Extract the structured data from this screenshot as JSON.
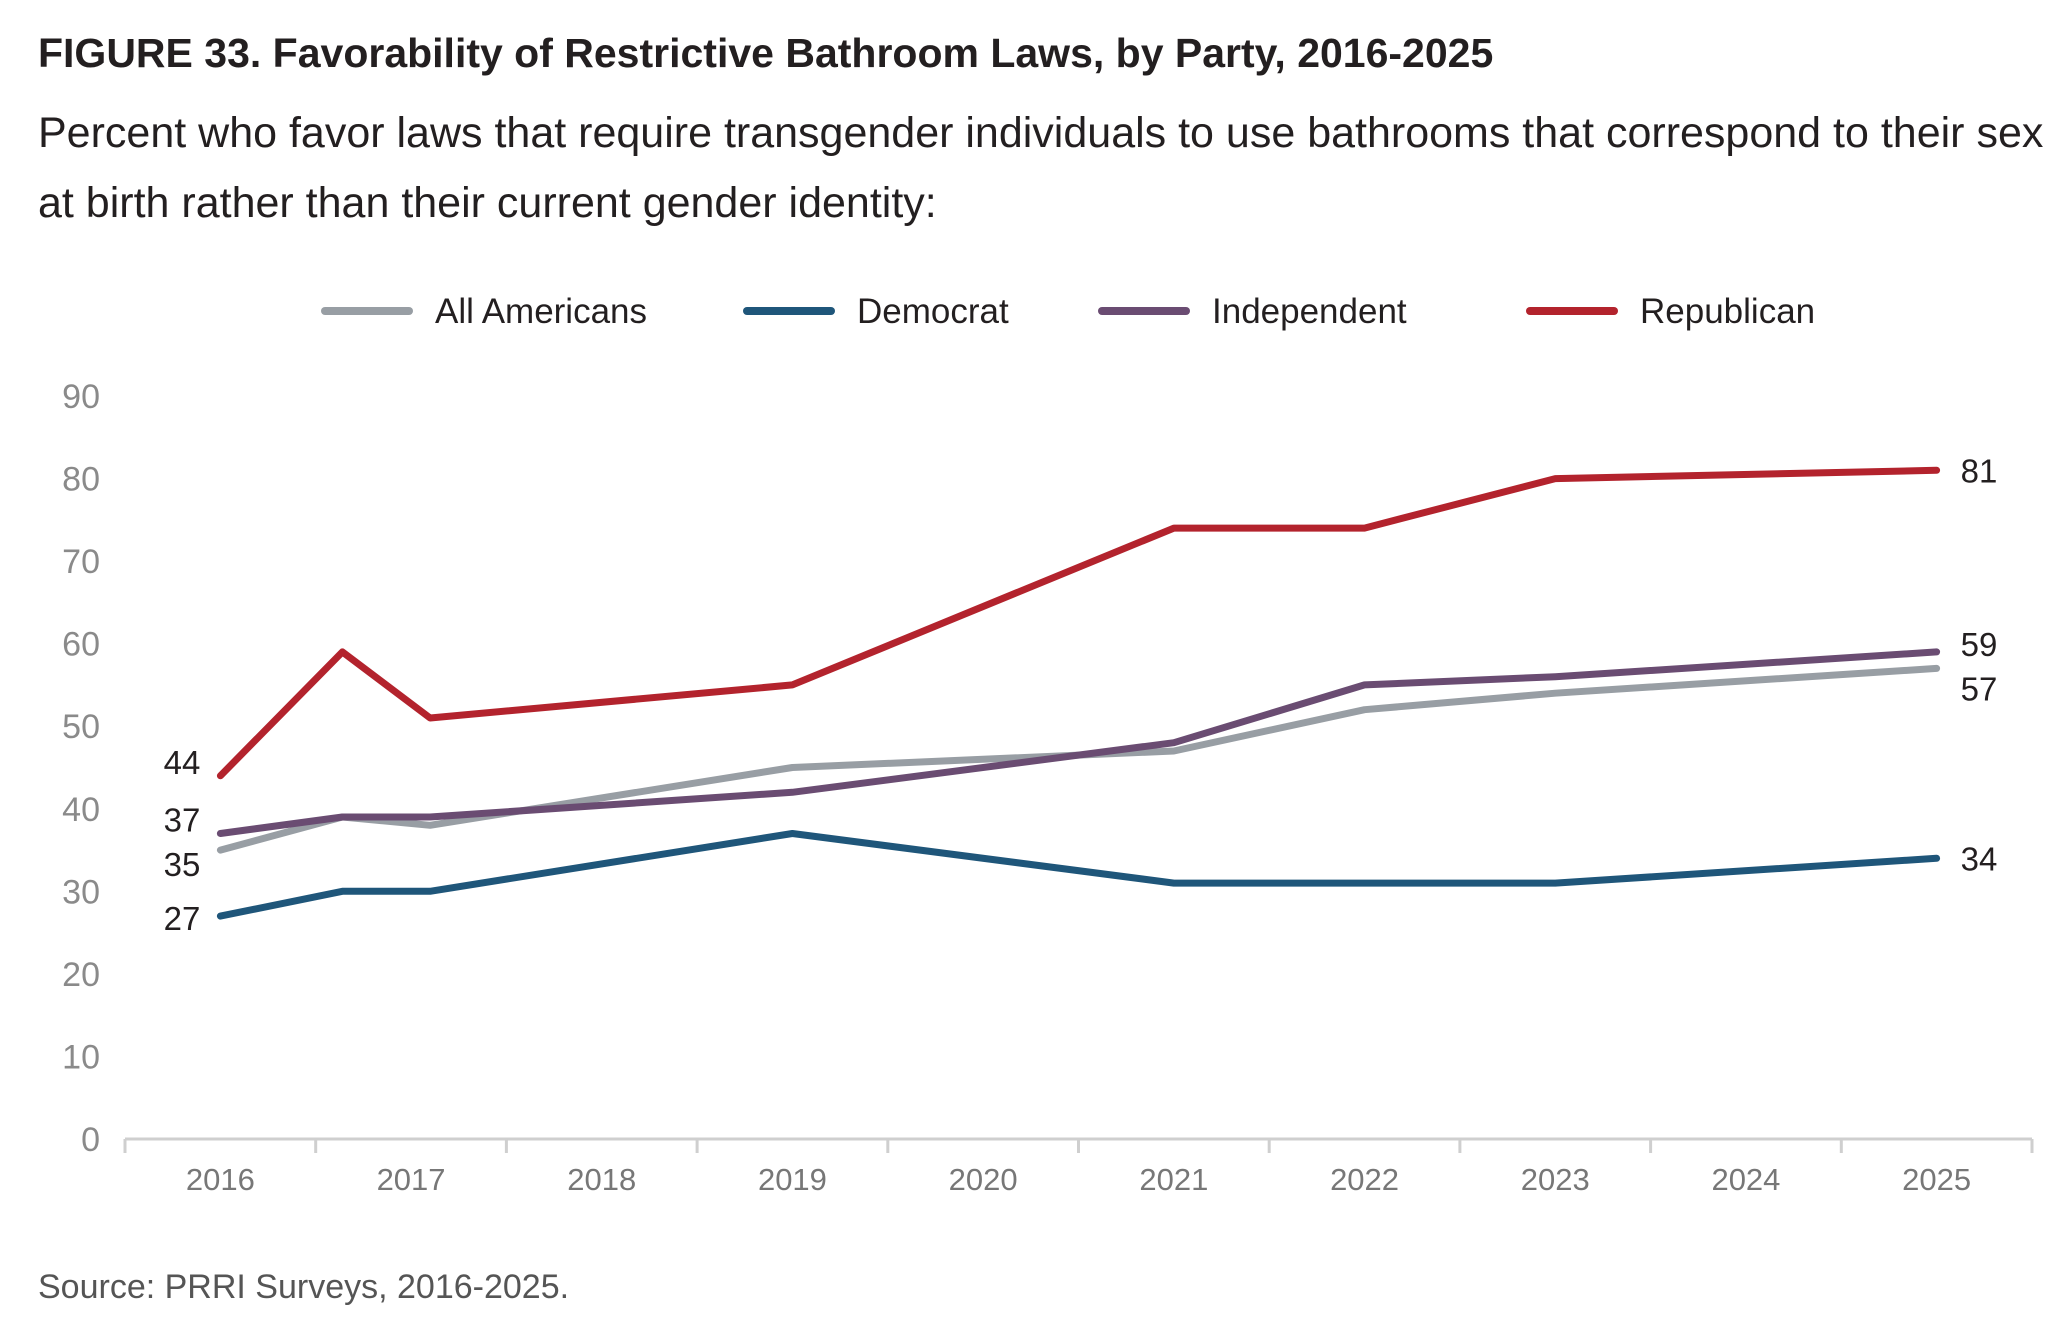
{
  "title": "FIGURE 33.  Favorability of Restrictive Bathroom Laws, by Party, 2016-2025",
  "subtitle": "Percent who favor laws that require transgender individuals to use bathrooms that correspond to their sex at birth rather than their current gender identity:",
  "source": "Source: PRRI Surveys, 2016-2025.",
  "chart_data": {
    "type": "line",
    "title": "",
    "xlabel": "",
    "ylabel": "",
    "ylim": [
      0,
      90
    ],
    "yticks": [
      "0",
      "10",
      "20",
      "30",
      "40",
      "50",
      "60",
      "70",
      "80",
      "90"
    ],
    "xlim": [
      2015.5,
      2025.5
    ],
    "xticks": [
      "2016",
      "2017",
      "2018",
      "2019",
      "2020",
      "2021",
      "2022",
      "2023",
      "2024",
      "2025"
    ],
    "legend_position": "top-center",
    "grid": false,
    "series": [
      {
        "name": "All Americans",
        "color": "#989ea4",
        "points": [
          [
            2016,
            35
          ],
          [
            2016.64,
            39
          ],
          [
            2017.1,
            38
          ],
          [
            2019,
            45
          ],
          [
            2021,
            47
          ],
          [
            2022,
            52
          ],
          [
            2023,
            54
          ],
          [
            2025,
            57
          ]
        ],
        "start_label": "35",
        "end_label": "57"
      },
      {
        "name": "Democrat",
        "color": "#1f567a",
        "points": [
          [
            2016,
            27
          ],
          [
            2016.64,
            30
          ],
          [
            2017.1,
            30
          ],
          [
            2019,
            37
          ],
          [
            2021,
            31
          ],
          [
            2022,
            31
          ],
          [
            2023,
            31
          ],
          [
            2025,
            34
          ]
        ],
        "start_label": "27",
        "end_label": "34"
      },
      {
        "name": "Independent",
        "color": "#6a4c72",
        "points": [
          [
            2016,
            37
          ],
          [
            2016.64,
            39
          ],
          [
            2017.1,
            39
          ],
          [
            2019,
            42
          ],
          [
            2021,
            48
          ],
          [
            2022,
            55
          ],
          [
            2023,
            56
          ],
          [
            2025,
            59
          ]
        ],
        "start_label": "37",
        "end_label": "59"
      },
      {
        "name": "Republican",
        "color": "#b3232d",
        "points": [
          [
            2016,
            44
          ],
          [
            2016.64,
            59
          ],
          [
            2017.1,
            51
          ],
          [
            2019,
            55
          ],
          [
            2021,
            74
          ],
          [
            2022,
            74
          ],
          [
            2023,
            80
          ],
          [
            2025,
            81
          ]
        ],
        "start_label": "44",
        "end_label": "81"
      }
    ]
  }
}
